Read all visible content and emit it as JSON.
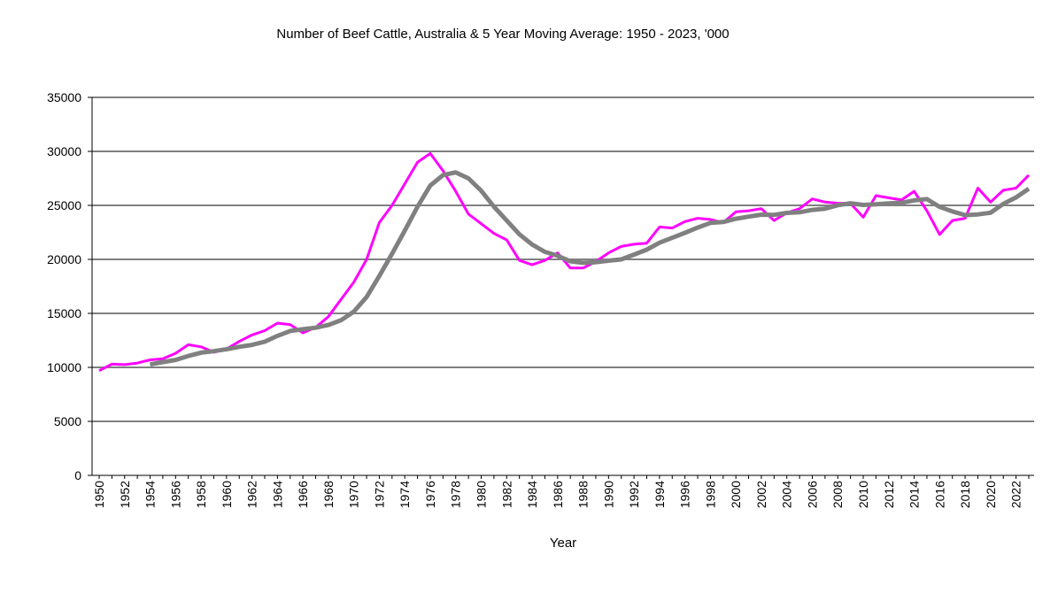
{
  "chart_data": {
    "type": "line",
    "title": "Number of Beef Cattle, Australia & 5 Year Moving Average: 1950 - 2023, '000",
    "xlabel": "Year",
    "ylabel": "",
    "ylim": [
      0,
      35000
    ],
    "yticks": [
      0,
      5000,
      10000,
      15000,
      20000,
      25000,
      30000,
      35000
    ],
    "xtick_step": 2,
    "grid": true,
    "legend": "none",
    "x": [
      1950,
      1951,
      1952,
      1953,
      1954,
      1955,
      1956,
      1957,
      1958,
      1959,
      1960,
      1961,
      1962,
      1963,
      1964,
      1965,
      1966,
      1967,
      1968,
      1969,
      1970,
      1971,
      1972,
      1973,
      1974,
      1975,
      1976,
      1977,
      1978,
      1979,
      1980,
      1981,
      1982,
      1983,
      1984,
      1985,
      1986,
      1987,
      1988,
      1989,
      1990,
      1991,
      1992,
      1993,
      1994,
      1995,
      1996,
      1997,
      1998,
      1999,
      2000,
      2001,
      2002,
      2003,
      2004,
      2005,
      2006,
      2007,
      2008,
      2009,
      2010,
      2011,
      2012,
      2013,
      2014,
      2015,
      2016,
      2017,
      2018,
      2019,
      2020,
      2021,
      2022,
      2023
    ],
    "series": [
      {
        "name": "Beef Cattle",
        "color": "#ff00ff",
        "values": [
          9700,
          10300,
          10250,
          10400,
          10700,
          10800,
          11300,
          12100,
          11900,
          11400,
          11700,
          12400,
          13000,
          13400,
          14100,
          13950,
          13200,
          13700,
          14700,
          16300,
          17900,
          20000,
          23400,
          25000,
          27000,
          29000,
          29800,
          28200,
          26300,
          24200,
          23300,
          22400,
          21800,
          19900,
          19500,
          19900,
          20600,
          19200,
          19200,
          19800,
          20600,
          21200,
          21400,
          21500,
          23000,
          22900,
          23500,
          23800,
          23700,
          23400,
          24400,
          24500,
          24700,
          23600,
          24300,
          24700,
          25600,
          25300,
          25200,
          25200,
          23900,
          25900,
          25700,
          25500,
          26300,
          24500,
          22300,
          23600,
          23800,
          26600,
          25300,
          26400,
          26600,
          27800
        ]
      },
      {
        "name": "5 Year Moving Average",
        "color": "#808080",
        "values": [
          null,
          null,
          null,
          null,
          10270,
          10490,
          10690,
          11060,
          11360,
          11500,
          11680,
          11900,
          12080,
          12380,
          12920,
          13370,
          13530,
          13670,
          13930,
          14370,
          15160,
          16520,
          18460,
          20520,
          22660,
          24880,
          26840,
          27800,
          28060,
          27500,
          26360,
          24880,
          23600,
          22320,
          21380,
          20700,
          20340,
          19820,
          19680,
          19740,
          19880,
          20000,
          20440,
          20900,
          21540,
          22000,
          22460,
          22940,
          23380,
          23460,
          23760,
          23960,
          24140,
          24120,
          24300,
          24360,
          24580,
          24700,
          25020,
          25200,
          25040,
          25100,
          25180,
          25240,
          25460,
          25580,
          24860,
          24440,
          24100,
          24160,
          24320,
          25140,
          25740,
          26540
        ]
      }
    ]
  }
}
